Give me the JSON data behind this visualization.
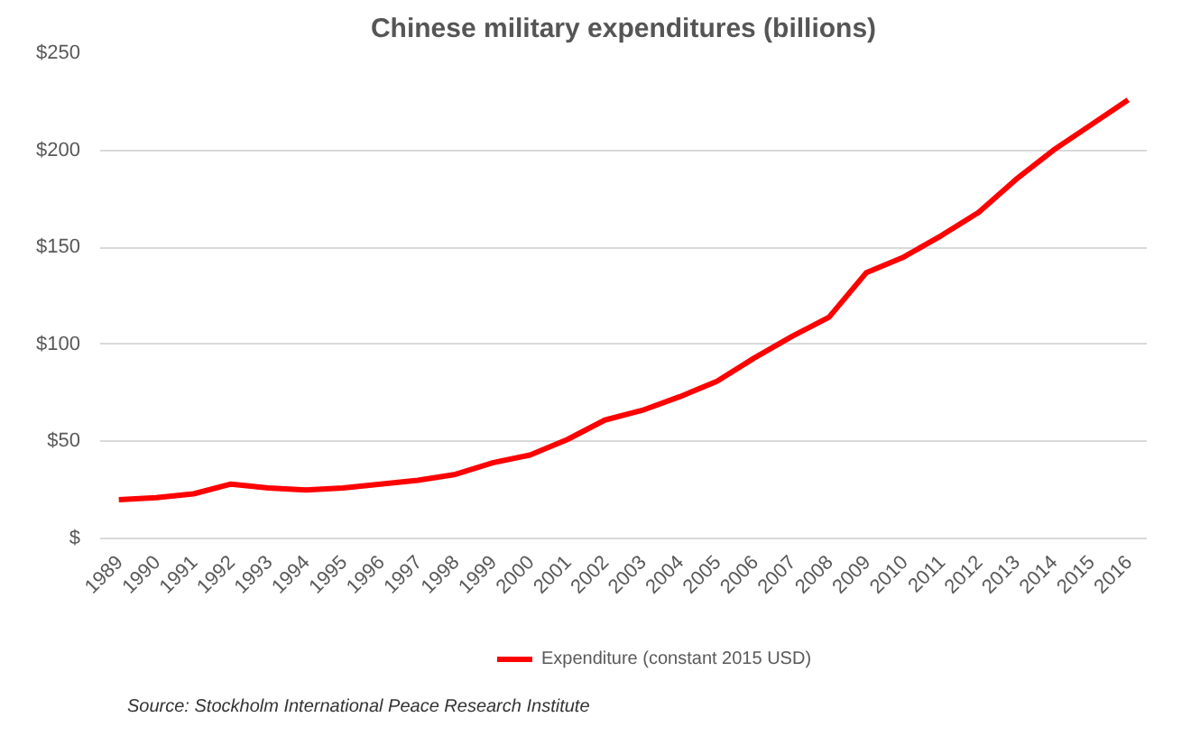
{
  "chart_data": {
    "type": "line",
    "title": "Chinese military expenditures (billions)",
    "categories": [
      "1989",
      "1990",
      "1991",
      "1992",
      "1993",
      "1994",
      "1995",
      "1996",
      "1997",
      "1998",
      "1999",
      "2000",
      "2001",
      "2002",
      "2003",
      "2004",
      "2005",
      "2006",
      "2007",
      "2008",
      "2009",
      "2010",
      "2011",
      "2012",
      "2013",
      "2014",
      "2015",
      "2016"
    ],
    "series": [
      {
        "name": "Expenditure (constant 2015 USD)",
        "color": "#ff0000",
        "values": [
          20,
          21,
          23,
          28,
          26,
          25,
          26,
          28,
          30,
          33,
          39,
          43,
          51,
          61,
          66,
          73,
          81,
          93,
          104,
          114,
          137,
          145,
          156,
          168,
          185,
          200,
          213,
          226
        ]
      }
    ],
    "ylim": [
      0,
      250
    ],
    "yticks": [
      {
        "value": 0,
        "label": "$"
      },
      {
        "value": 50,
        "label": "$50"
      },
      {
        "value": 100,
        "label": "$100"
      },
      {
        "value": 150,
        "label": "$150"
      },
      {
        "value": 200,
        "label": "$200"
      },
      {
        "value": 250,
        "label": "$250"
      }
    ],
    "grid": "y",
    "legend": "bottom",
    "marker": "none",
    "line_style": "solid",
    "annotations": [
      "Source: Stockholm International Peace Research Institute"
    ]
  }
}
